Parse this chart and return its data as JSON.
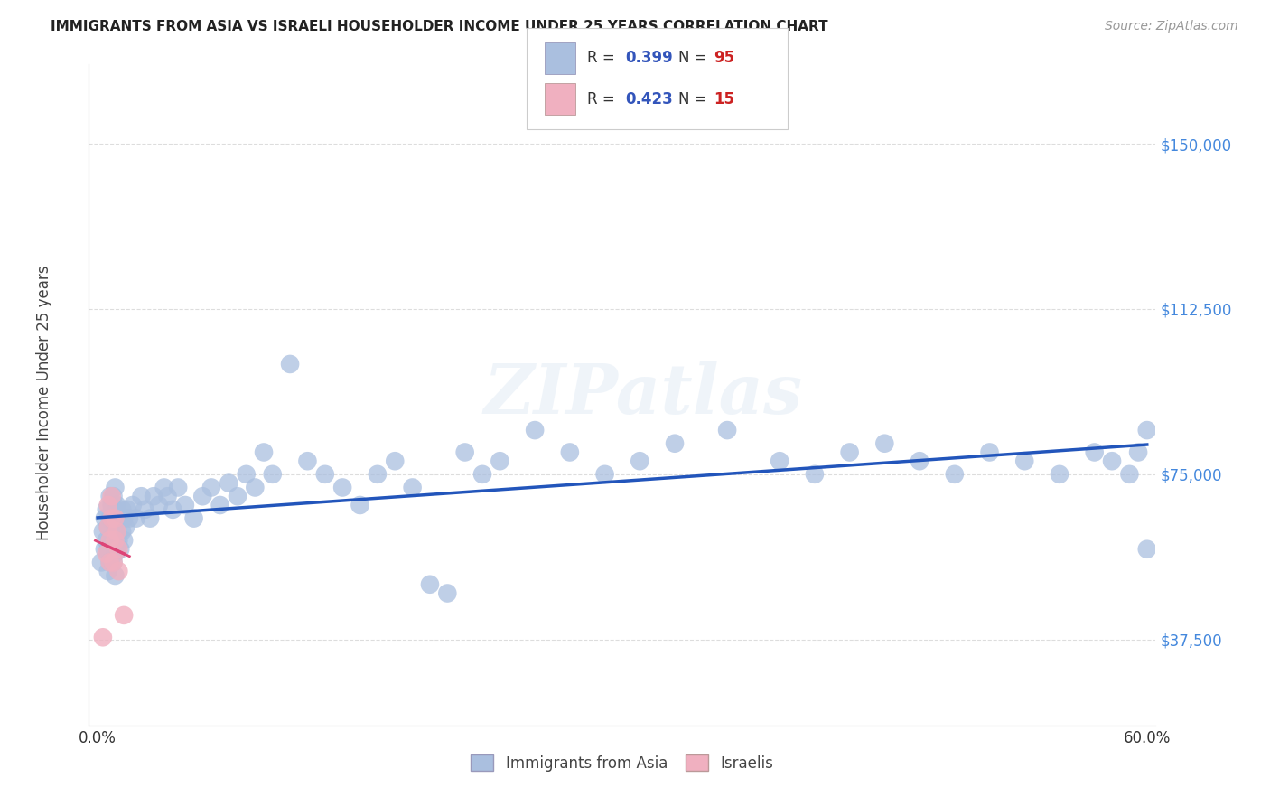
{
  "title": "IMMIGRANTS FROM ASIA VS ISRAELI HOUSEHOLDER INCOME UNDER 25 YEARS CORRELATION CHART",
  "source": "Source: ZipAtlas.com",
  "ylabel": "Householder Income Under 25 years",
  "xlim": [
    -0.005,
    0.605
  ],
  "ylim": [
    18000,
    168000
  ],
  "yticks": [
    37500,
    75000,
    112500,
    150000
  ],
  "ytick_labels": [
    "$37,500",
    "$75,000",
    "$112,500",
    "$150,000"
  ],
  "background_color": "#ffffff",
  "grid_color": "#dddddd",
  "blue_color": "#aabfdf",
  "pink_color": "#f0b0c0",
  "blue_line_color": "#2255bb",
  "pink_line_color": "#dd4477",
  "title_color": "#222222",
  "axis_label_color": "#444444",
  "ytick_color": "#4488dd",
  "R_blue": 0.399,
  "N_blue": 95,
  "R_pink": 0.423,
  "N_pink": 15,
  "watermark": "ZIPatlas",
  "blue_scatter_x": [
    0.002,
    0.003,
    0.004,
    0.004,
    0.005,
    0.005,
    0.006,
    0.006,
    0.006,
    0.007,
    0.007,
    0.007,
    0.007,
    0.008,
    0.008,
    0.008,
    0.009,
    0.009,
    0.009,
    0.009,
    0.01,
    0.01,
    0.01,
    0.01,
    0.01,
    0.011,
    0.011,
    0.011,
    0.012,
    0.012,
    0.013,
    0.013,
    0.014,
    0.014,
    0.015,
    0.015,
    0.016,
    0.017,
    0.018,
    0.02,
    0.022,
    0.025,
    0.027,
    0.03,
    0.032,
    0.035,
    0.038,
    0.04,
    0.043,
    0.046,
    0.05,
    0.055,
    0.06,
    0.065,
    0.07,
    0.075,
    0.08,
    0.085,
    0.09,
    0.095,
    0.1,
    0.11,
    0.12,
    0.13,
    0.14,
    0.15,
    0.16,
    0.17,
    0.18,
    0.19,
    0.2,
    0.21,
    0.22,
    0.23,
    0.25,
    0.27,
    0.29,
    0.31,
    0.33,
    0.36,
    0.39,
    0.41,
    0.43,
    0.45,
    0.47,
    0.49,
    0.51,
    0.53,
    0.55,
    0.57,
    0.58,
    0.59,
    0.595,
    0.6,
    0.6
  ],
  "blue_scatter_y": [
    55000,
    62000,
    58000,
    65000,
    60000,
    67000,
    53000,
    58000,
    63000,
    55000,
    60000,
    65000,
    70000,
    58000,
    62000,
    68000,
    55000,
    60000,
    65000,
    70000,
    52000,
    57000,
    62000,
    67000,
    72000,
    58000,
    63000,
    68000,
    60000,
    65000,
    58000,
    65000,
    62000,
    67000,
    60000,
    65000,
    63000,
    67000,
    65000,
    68000,
    65000,
    70000,
    67000,
    65000,
    70000,
    68000,
    72000,
    70000,
    67000,
    72000,
    68000,
    65000,
    70000,
    72000,
    68000,
    73000,
    70000,
    75000,
    72000,
    80000,
    75000,
    100000,
    78000,
    75000,
    72000,
    68000,
    75000,
    78000,
    72000,
    50000,
    48000,
    80000,
    75000,
    78000,
    85000,
    80000,
    75000,
    78000,
    82000,
    85000,
    78000,
    75000,
    80000,
    82000,
    78000,
    75000,
    80000,
    78000,
    75000,
    80000,
    78000,
    75000,
    80000,
    85000,
    58000
  ],
  "pink_scatter_x": [
    0.003,
    0.005,
    0.006,
    0.006,
    0.007,
    0.007,
    0.008,
    0.008,
    0.009,
    0.01,
    0.01,
    0.011,
    0.012,
    0.012,
    0.015
  ],
  "pink_scatter_y": [
    38000,
    57000,
    63000,
    68000,
    55000,
    60000,
    65000,
    70000,
    55000,
    60000,
    65000,
    62000,
    58000,
    53000,
    43000
  ]
}
